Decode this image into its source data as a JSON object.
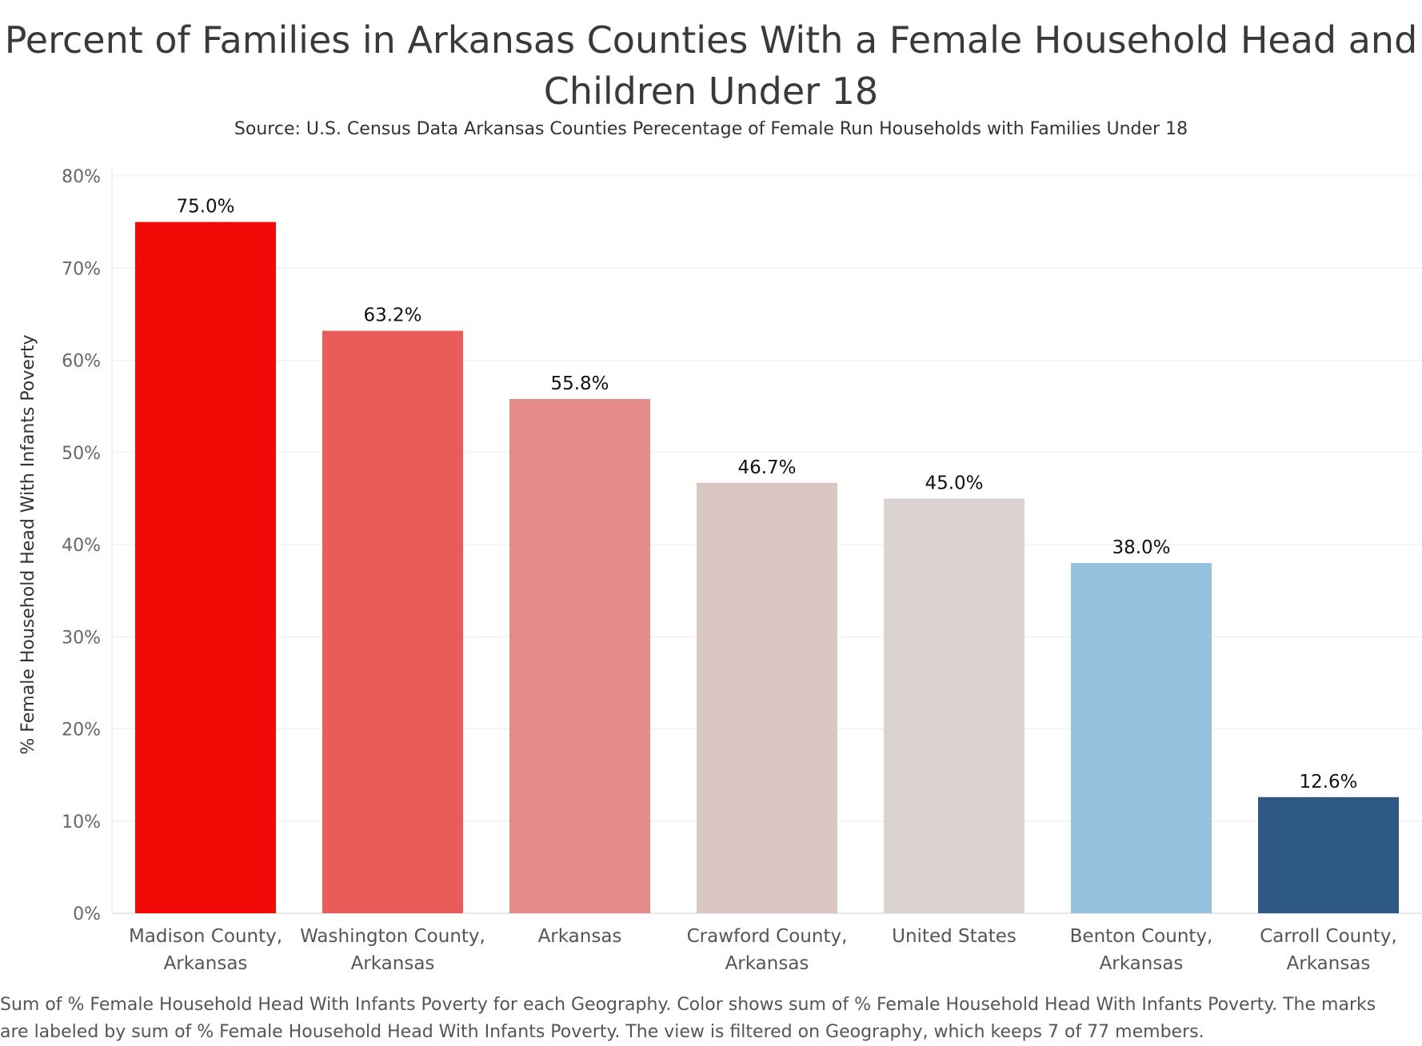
{
  "title_line1": "Percent of Families in Arkansas Counties With a Female Household Head and",
  "title_line2": "Children Under 18",
  "subtitle": "Source: U.S. Census Data Arkansas Counties Perecentage of Female Run Households with Families Under 18",
  "caption_line1": "Sum of % Female Household Head With Infants Poverty for each Geography.  Color shows sum of % Female Household Head With Infants Poverty.  The marks",
  "caption_line2": "are labeled by sum of % Female Household Head With Infants Poverty. The view is filtered on Geography, which keeps 7 of 77 members.",
  "chart_data": {
    "type": "bar",
    "title": "Percent of Families in Arkansas Counties With a Female Household Head and Children Under 18",
    "subtitle": "Source: U.S. Census Data Arkansas Counties Perecentage of Female Run Households with Families Under 18",
    "xlabel": "",
    "ylabel": "% Female Household Head With Infants Poverty",
    "ylim": [
      0,
      80
    ],
    "yticks": [
      "0%",
      "10%",
      "20%",
      "30%",
      "40%",
      "50%",
      "60%",
      "70%",
      "80%"
    ],
    "grid": true,
    "categories": [
      [
        "Madison County,",
        "Arkansas"
      ],
      [
        "Washington County,",
        "Arkansas"
      ],
      [
        "Arkansas"
      ],
      [
        "Crawford County,",
        "Arkansas"
      ],
      [
        "United States"
      ],
      [
        "Benton County,",
        "Arkansas"
      ],
      [
        "Carroll County,",
        "Arkansas"
      ]
    ],
    "values": [
      75.0,
      63.2,
      55.8,
      46.7,
      45.0,
      38.0,
      12.6
    ],
    "data_labels": [
      "75.0%",
      "63.2%",
      "55.8%",
      "46.7%",
      "45.0%",
      "38.0%",
      "12.6%"
    ],
    "colors": [
      "#f20a06",
      "#e85c5a",
      "#e38c8b",
      "#dbc6c6",
      "#dbd3d2",
      "#96c1df",
      "#2e5984"
    ]
  }
}
